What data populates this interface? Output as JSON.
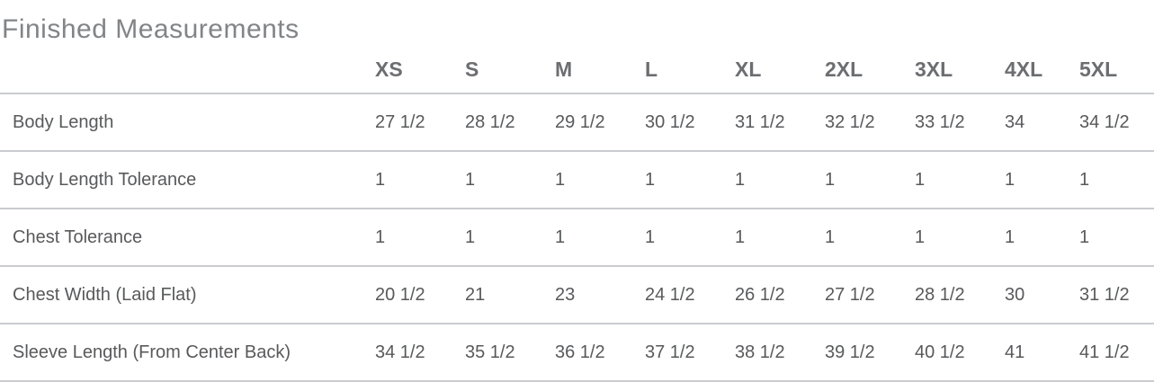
{
  "title": "Finished Measurements",
  "table": {
    "size_headers": [
      "XS",
      "S",
      "M",
      "L",
      "XL",
      "2XL",
      "3XL",
      "4XL",
      "5XL"
    ],
    "rows": [
      {
        "label": "Body Length",
        "values": [
          "27 1/2",
          "28 1/2",
          "29 1/2",
          "30 1/2",
          "31 1/2",
          "32 1/2",
          "33 1/2",
          "34",
          "34 1/2"
        ]
      },
      {
        "label": "Body Length Tolerance",
        "values": [
          "1",
          "1",
          "1",
          "1",
          "1",
          "1",
          "1",
          "1",
          "1"
        ]
      },
      {
        "label": "Chest Tolerance",
        "values": [
          "1",
          "1",
          "1",
          "1",
          "1",
          "1",
          "1",
          "1",
          "1"
        ]
      },
      {
        "label": "Chest Width (Laid Flat)",
        "values": [
          "20 1/2",
          "21",
          "23",
          "24 1/2",
          "26 1/2",
          "27 1/2",
          "28 1/2",
          "30",
          "31 1/2"
        ]
      },
      {
        "label": "Sleeve Length (From Center Back)",
        "values": [
          "34 1/2",
          "35 1/2",
          "36 1/2",
          "37 1/2",
          "38 1/2",
          "39 1/2",
          "40 1/2",
          "41",
          "41 1/2"
        ]
      }
    ]
  },
  "colors": {
    "title": "#828487",
    "header": "#6d6e71",
    "body": "#58595b",
    "border": "#c9cbce",
    "background": "#ffffff"
  }
}
